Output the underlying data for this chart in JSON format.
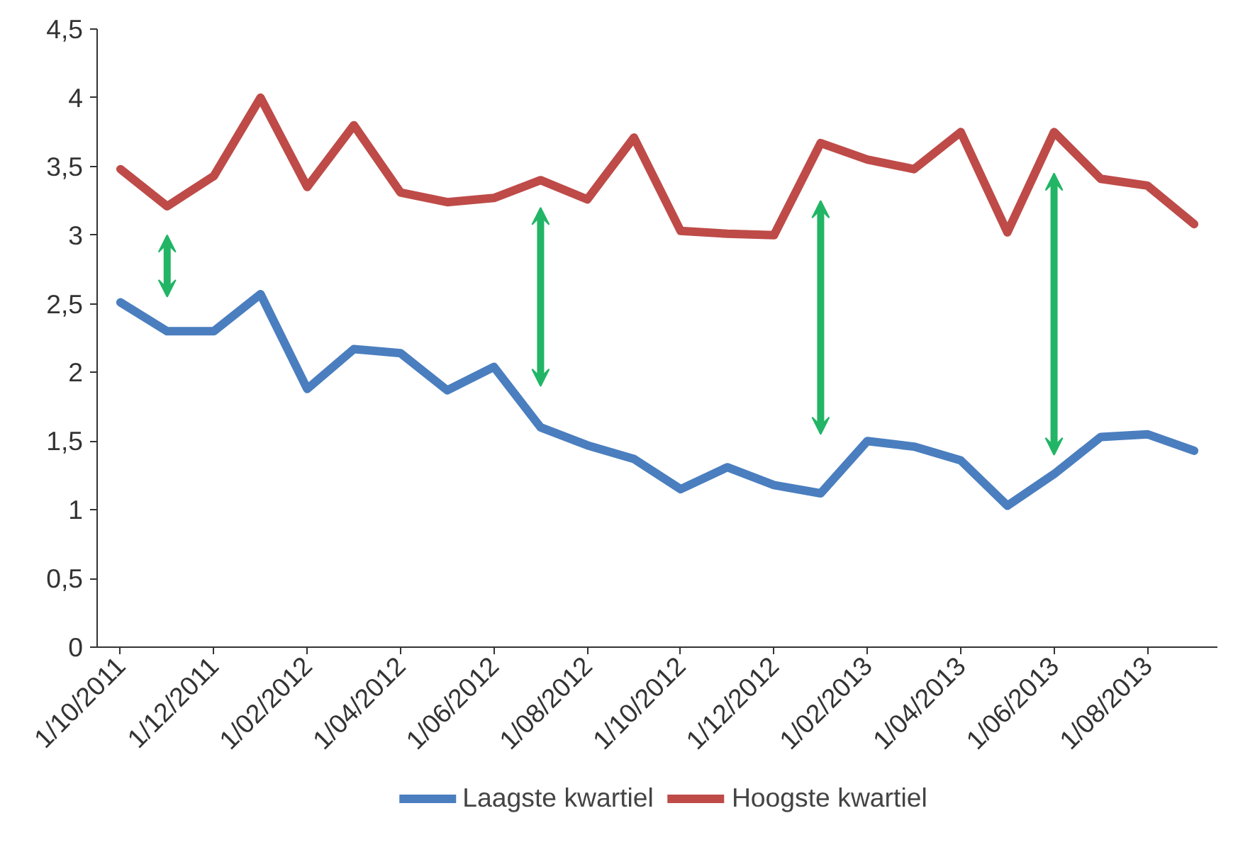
{
  "chart_data": {
    "type": "line",
    "categories": [
      "1/10/2011",
      null,
      "1/12/2011",
      null,
      "1/02/2012",
      null,
      "1/04/2012",
      null,
      "1/06/2012",
      null,
      "1/08/2012",
      null,
      "1/10/2012",
      null,
      "1/12/2012",
      null,
      "1/02/2013",
      null,
      "1/04/2013",
      null,
      "1/06/2013",
      null,
      "1/08/2013",
      null
    ],
    "series": [
      {
        "name": "Laagste kwartiel",
        "color": "#4a7ebf",
        "values": [
          2.51,
          2.3,
          2.3,
          2.57,
          1.88,
          2.17,
          2.14,
          1.87,
          2.04,
          1.6,
          1.47,
          1.37,
          1.15,
          1.31,
          1.18,
          1.12,
          1.5,
          1.46,
          1.36,
          1.03,
          1.26,
          1.53,
          1.55,
          1.43
        ]
      },
      {
        "name": "Hoogste kwartiel",
        "color": "#be4b48",
        "values": [
          3.48,
          3.21,
          3.43,
          4.0,
          3.35,
          3.8,
          3.31,
          3.24,
          3.27,
          3.4,
          3.26,
          3.71,
          3.03,
          3.01,
          3.0,
          3.67,
          3.55,
          3.48,
          3.75,
          3.02,
          3.75,
          3.41,
          3.36,
          3.08
        ]
      }
    ],
    "ylim": [
      0,
      4.5
    ],
    "yticks": [
      0,
      {
        "value": 0.5,
        "label": "0,5"
      },
      1,
      {
        "value": 1.5,
        "label": "1,5"
      },
      2,
      {
        "value": 2.5,
        "label": "2,5"
      },
      3,
      {
        "value": 3.5,
        "label": "3,5"
      },
      4,
      {
        "value": 4.5,
        "label": "4,5"
      }
    ],
    "grid": false,
    "legend": "bottom",
    "marker": "none",
    "line_style": "solid"
  }
}
